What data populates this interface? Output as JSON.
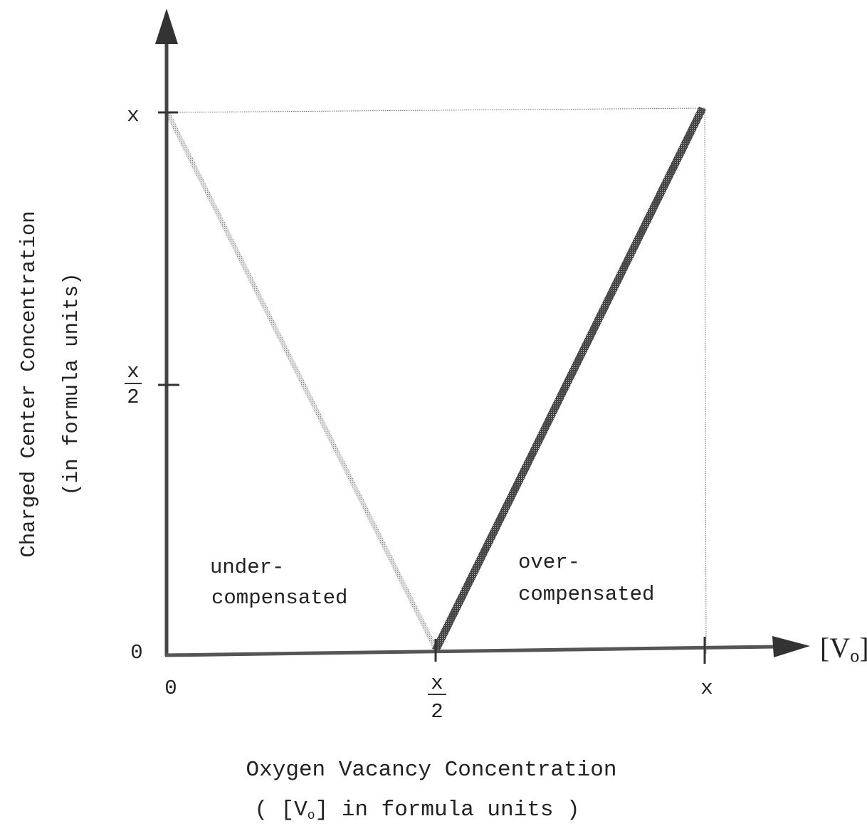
{
  "y_axis": {
    "label": "Charged Center Concentration",
    "sublabel": "(in formula units)",
    "ticks": [
      "x",
      {
        "numerator": "x",
        "denominator": "2"
      },
      "0"
    ]
  },
  "x_axis": {
    "ticks": [
      "0",
      {
        "numerator": "x",
        "denominator": "2"
      },
      "x"
    ],
    "end_label": {
      "open": "[V",
      "sub": "o",
      "close": "]"
    },
    "title": "Oxygen  Vacancy Concentration",
    "subtitle": {
      "open": "( [V",
      "sub": "o",
      "close": "] in formula units )"
    }
  },
  "regions": [
    {
      "lines": [
        "under-",
        "compensated"
      ]
    },
    {
      "lines": [
        "over-",
        "compensated"
      ]
    }
  ]
}
